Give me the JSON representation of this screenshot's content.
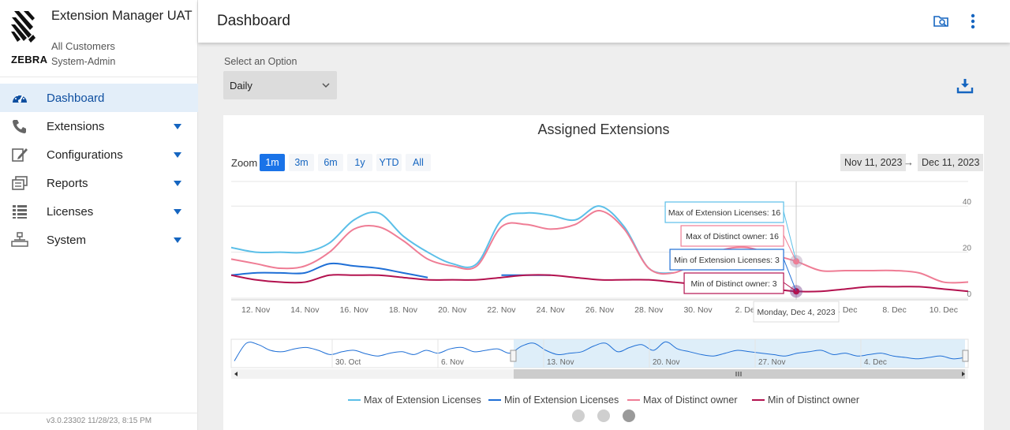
{
  "app": {
    "title": "Extension Manager UAT",
    "customer": "All Customers",
    "role": "System-Admin",
    "brand": "ZEBRA",
    "version": "v3.0.23302 11/28/23, 8:15 PM"
  },
  "sidebar": {
    "items": [
      {
        "label": "Dashboard",
        "icon": "dashboard-icon",
        "active": true
      },
      {
        "label": "Extensions",
        "icon": "phone-icon"
      },
      {
        "label": "Configurations",
        "icon": "edit-icon"
      },
      {
        "label": "Reports",
        "icon": "reports-icon"
      },
      {
        "label": "Licenses",
        "icon": "list-icon"
      },
      {
        "label": "System",
        "icon": "network-icon"
      }
    ]
  },
  "header": {
    "title": "Dashboard",
    "icons": [
      "folder-search-icon",
      "more-vertical-icon"
    ]
  },
  "options": {
    "label": "Select an Option",
    "selected": "Daily"
  },
  "colors": {
    "accent": "#1a73e8",
    "max_ext": "#5bbfe8",
    "min_ext": "#1f6fd6",
    "max_owner": "#ef7d95",
    "min_owner": "#b3124f"
  },
  "zoom": {
    "label": "Zoom",
    "buttons": [
      "1m",
      "3m",
      "6m",
      "1y",
      "YTD",
      "All"
    ],
    "active": "1m"
  },
  "range": {
    "from": "Nov 11, 2023",
    "arrow": "→",
    "to": "Dec 11, 2023"
  },
  "chart_data": {
    "type": "line",
    "title": "Assigned Extensions",
    "x_ticks": [
      "12. Nov",
      "14. Nov",
      "16. Nov",
      "18. Nov",
      "20. Nov",
      "22. Nov",
      "24. Nov",
      "26. Nov",
      "28. Nov",
      "30. Nov",
      "2. Dec",
      "4. Dec",
      "6. Dec",
      "8. Dec",
      "10. Dec"
    ],
    "y_ticks": [
      "0",
      "20",
      "40"
    ],
    "ylim": [
      0,
      50
    ],
    "x": [
      "Nov 11",
      "Nov 12",
      "Nov 13",
      "Nov 14",
      "Nov 15",
      "Nov 16",
      "Nov 17",
      "Nov 18",
      "Nov 19",
      "Nov 20",
      "Nov 21",
      "Nov 22",
      "Nov 23",
      "Nov 24",
      "Nov 25",
      "Nov 26",
      "Nov 27",
      "Nov 28",
      "Nov 29",
      "Nov 30",
      "Dec 1",
      "Dec 2",
      "Dec 3",
      "Dec 4",
      "Dec 5",
      "Dec 6",
      "Dec 7",
      "Dec 8",
      "Dec 9",
      "Dec 10",
      "Dec 11"
    ],
    "series": [
      {
        "name": "Max of Extension Licenses",
        "color": "#5bbfe8",
        "values": [
          22,
          20,
          20,
          20,
          24,
          34,
          37,
          27,
          20,
          15,
          15,
          34,
          37,
          36,
          34,
          40,
          31,
          13,
          11,
          null,
          null,
          null,
          null,
          16,
          null,
          null,
          null,
          null,
          null,
          null,
          null
        ]
      },
      {
        "name": "Min of Extension Licenses",
        "color": "#1f6fd6",
        "values": [
          10,
          11,
          11,
          11,
          15,
          14,
          13,
          11,
          9,
          null,
          null,
          10,
          10,
          10,
          null,
          null,
          null,
          null,
          null,
          null,
          null,
          null,
          null,
          3,
          null,
          null,
          null,
          null,
          null,
          null,
          null
        ]
      },
      {
        "name": "Max of Distinct owner",
        "color": "#ef7d95",
        "values": [
          17,
          15,
          13,
          14,
          20,
          30,
          31,
          25,
          17,
          14,
          14,
          31,
          32,
          30,
          32,
          38,
          30,
          13,
          11,
          16,
          21,
          22,
          19,
          16,
          12,
          12,
          12,
          12,
          11,
          7,
          7
        ]
      },
      {
        "name": "Min of Distinct owner",
        "color": "#b3124f",
        "values": [
          10,
          8,
          7,
          7,
          10,
          10,
          10,
          9,
          8,
          8,
          8,
          9,
          10,
          10,
          9,
          8,
          8,
          8,
          7,
          6,
          5,
          5,
          4,
          3,
          3,
          4,
          5,
          5,
          5,
          4,
          3
        ]
      }
    ],
    "tooltip": {
      "date": "Monday, Dec 4, 2023",
      "entries": [
        "Max of Extension Licenses: 16",
        "Max of Distinct owner: 16",
        "Min of Extension Licenses: 3",
        "Min of Distinct owner: 3"
      ]
    },
    "navigator_ticks": [
      "30. Oct",
      "6. Nov",
      "13. Nov",
      "20. Nov",
      "27. Nov",
      "4. Dec"
    ],
    "legend": [
      "Max of Extension Licenses",
      "Min of Extension Licenses",
      "Max of Distinct owner",
      "Min of Distinct owner"
    ]
  },
  "pager": {
    "count": 3,
    "active": 2
  }
}
